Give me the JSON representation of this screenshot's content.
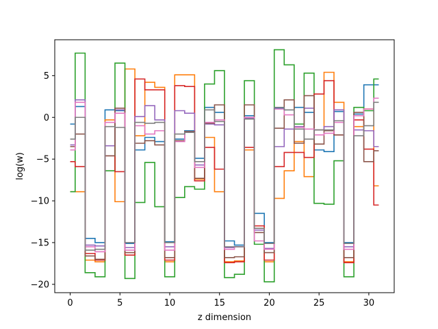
{
  "chart_data": {
    "type": "line",
    "drawstyle": "steps-mid",
    "title": "",
    "xlabel": "z dimension",
    "ylabel": "log(w)",
    "xlim": [
      -1.55,
      32.55
    ],
    "ylim": [
      -21.0,
      9.3
    ],
    "x_ticks": [
      0,
      5,
      10,
      15,
      20,
      25,
      30
    ],
    "y_ticks": [
      -20,
      -15,
      -10,
      -5,
      0,
      5
    ],
    "x_tick_labels": [
      "0",
      "5",
      "10",
      "15",
      "20",
      "25",
      "30"
    ],
    "y_tick_labels": [
      "−20",
      "−15",
      "−10",
      "−5",
      "0",
      "5"
    ],
    "grid": false,
    "legend": "none",
    "x": [
      0,
      1,
      2,
      3,
      4,
      5,
      6,
      7,
      8,
      9,
      10,
      11,
      12,
      13,
      14,
      15,
      16,
      17,
      18,
      19,
      20,
      21,
      22,
      23,
      24,
      25,
      26,
      27,
      28,
      29,
      30,
      31
    ],
    "series": [
      {
        "color": "#1f77b4",
        "values": [
          -0.8,
          1.3,
          -14.5,
          -15.0,
          0.9,
          0.8,
          -15.1,
          -3.9,
          -2.4,
          -2.9,
          -14.9,
          -2.6,
          -1.6,
          -4.9,
          1.2,
          0.6,
          -14.8,
          -15.3,
          0.2,
          -11.5,
          -15.0,
          1.1,
          0.9,
          1.2,
          0.6,
          -3.9,
          -4.1,
          0.7,
          -15.0,
          0.4,
          3.9,
          3.9
        ]
      },
      {
        "color": "#ff7f0e",
        "values": [
          -8.9,
          -8.9,
          -17.1,
          -17.3,
          -0.3,
          -10.1,
          5.8,
          -2.2,
          4.2,
          3.6,
          -17.3,
          5.1,
          5.1,
          -7.4,
          -2.4,
          -8.9,
          -17.3,
          -17.2,
          -3.9,
          -13.3,
          -17.3,
          -9.7,
          -6.4,
          -2.9,
          -7.1,
          -1.5,
          5.4,
          1.8,
          -17.3,
          -1.1,
          1.0,
          -8.2
        ]
      },
      {
        "color": "#2ca02c",
        "values": [
          -8.9,
          7.7,
          -18.6,
          -19.1,
          -6.4,
          6.5,
          -19.3,
          -10.2,
          -5.4,
          -10.7,
          -19.1,
          -9.6,
          -8.3,
          -8.6,
          4.0,
          5.6,
          -19.2,
          -18.8,
          4.4,
          -15.2,
          -19.7,
          8.1,
          6.3,
          -0.8,
          5.3,
          -10.3,
          -10.4,
          -5.2,
          -19.1,
          1.2,
          0.8,
          4.6
        ]
      },
      {
        "color": "#d62728",
        "values": [
          -5.3,
          -5.9,
          -16.3,
          -17.1,
          -4.6,
          -6.5,
          -16.5,
          4.6,
          3.3,
          3.3,
          -17.1,
          3.8,
          3.7,
          -7.6,
          -3.6,
          -6.2,
          -17.4,
          -17.3,
          -3.6,
          -13.0,
          -17.1,
          -5.9,
          -4.2,
          -4.2,
          -4.8,
          2.8,
          4.4,
          -2.1,
          -17.4,
          -0.3,
          -3.8,
          -10.5
        ]
      },
      {
        "color": "#9467bd",
        "values": [
          -3.3,
          2.1,
          -15.3,
          -15.4,
          -3.4,
          0.9,
          -15.6,
          0.1,
          1.4,
          -0.3,
          -15.5,
          0.8,
          0.5,
          -5.7,
          -0.8,
          -0.9,
          -15.6,
          -15.5,
          -0.1,
          -13.5,
          -15.7,
          -3.5,
          -1.4,
          -1.1,
          1.1,
          -1.5,
          -1.1,
          0.9,
          -15.5,
          -1.5,
          -1.6,
          -3.5
        ]
      },
      {
        "color": "#8c564b",
        "values": [
          -3.5,
          -2.0,
          -16.6,
          -17.0,
          -4.6,
          1.1,
          -16.2,
          -3.1,
          -2.8,
          -3.3,
          -16.8,
          -2.8,
          -1.7,
          -7.3,
          -0.7,
          1.5,
          -16.8,
          -16.7,
          1.5,
          -13.8,
          -16.2,
          -1.3,
          2.1,
          -3.1,
          2.6,
          -3.2,
          -1.6,
          -2.1,
          -16.8,
          0.6,
          -5.3,
          -4.0
        ]
      },
      {
        "color": "#e377c2",
        "values": [
          -3.9,
          1.8,
          -15.5,
          -16.1,
          -0.6,
          0.5,
          -15.9,
          -1.0,
          -2.0,
          -1.6,
          -15.9,
          -2.9,
          -1.8,
          -6.0,
          -0.6,
          -0.3,
          -15.8,
          -15.5,
          0.0,
          -14.8,
          -15.8,
          1.0,
          0.3,
          -1.2,
          -1.4,
          -2.1,
          -1.9,
          -0.6,
          -15.8,
          0.2,
          1.0,
          2.3
        ]
      },
      {
        "color": "#7f7f7f",
        "values": [
          -2.6,
          0.0,
          -15.9,
          -15.8,
          -1.1,
          -1.2,
          -15.0,
          -0.6,
          -0.7,
          -0.6,
          -15.0,
          -2.0,
          -1.8,
          -5.3,
          0.9,
          -0.5,
          -15.5,
          -15.5,
          -0.2,
          -13.3,
          -15.1,
          1.2,
          0.9,
          -1.4,
          -2.6,
          -1.5,
          -1.5,
          -0.4,
          -15.1,
          -2.2,
          -1.0,
          1.8
        ]
      }
    ]
  }
}
